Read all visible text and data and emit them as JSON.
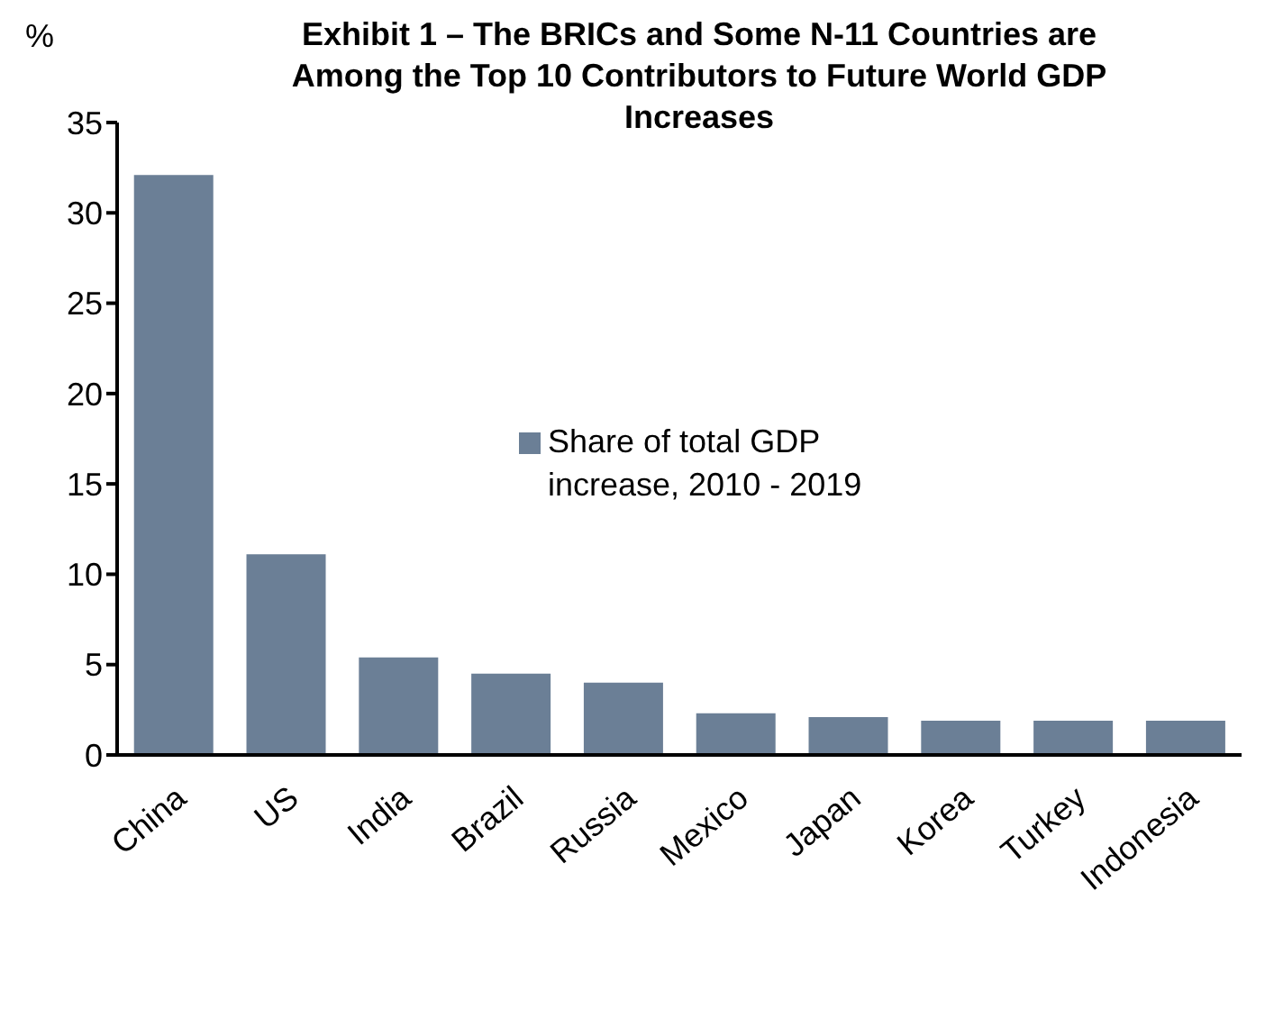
{
  "chart_data": {
    "type": "bar",
    "title": "Exhibit 1 – The BRICs and Some N-11 Countries are Among the Top 10 Contributors to Future World GDP Increases",
    "ylabel": "%",
    "categories": [
      "China",
      "US",
      "India",
      "Brazil",
      "Russia",
      "Mexico",
      "Japan",
      "Korea",
      "Turkey",
      "Indonesia"
    ],
    "series": [
      {
        "name": "Share of total GDP increase, 2010 - 2019",
        "color": "#6b7f96",
        "values": [
          32.1,
          11.1,
          5.4,
          4.5,
          4.0,
          2.3,
          2.1,
          1.9,
          1.9,
          1.9
        ]
      }
    ],
    "ylim": [
      0,
      35
    ],
    "yticks": [
      0,
      5,
      10,
      15,
      20,
      25,
      30,
      35
    ],
    "grid": false,
    "legend": "center"
  }
}
